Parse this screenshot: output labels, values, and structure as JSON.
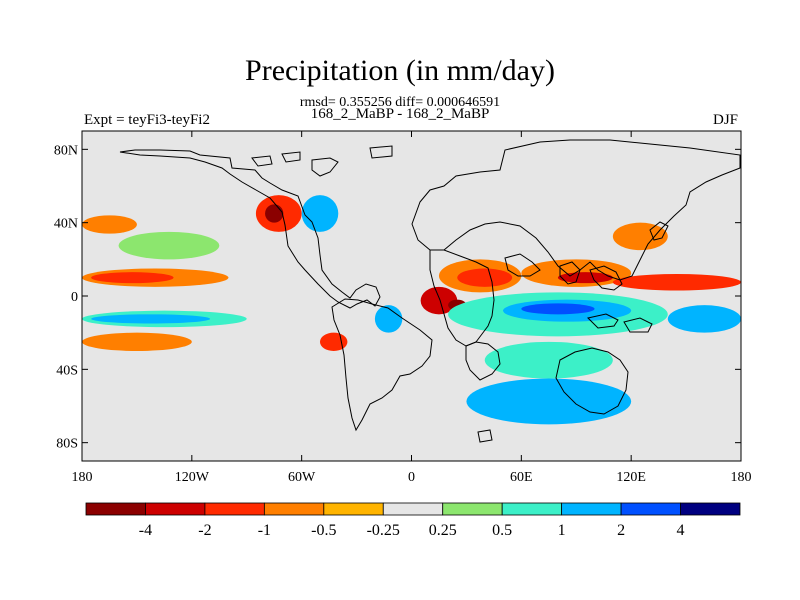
{
  "figure": {
    "title": "Precipitation (in mm/day)",
    "stats": "rmsd= 0.355256 diff= 0.000646591",
    "subtitle": "168_2_MaBP - 168_2_MaBP",
    "left_label": "Expt = teyFi3-teyFi2",
    "right_label": "DJF"
  },
  "chart_data": {
    "type": "heatmap",
    "title": "Precipitation (in mm/day)",
    "x_axis": {
      "range": [
        -180,
        180
      ],
      "ticks": [
        -180,
        -120,
        -60,
        0,
        60,
        120,
        180
      ],
      "labels": [
        "180",
        "120W",
        "60W",
        "0",
        "60E",
        "120E",
        "180"
      ]
    },
    "y_axis": {
      "range": [
        -90,
        90
      ],
      "ticks": [
        80,
        40,
        0,
        -40,
        -80
      ],
      "labels": [
        "80N",
        "40N",
        "0",
        "40S",
        "80S"
      ]
    },
    "colorbar": {
      "levels": [
        "-4",
        "-2",
        "-1",
        "-0.5",
        "-0.25",
        "0.25",
        "0.5",
        "1",
        "2",
        "4"
      ],
      "colors": [
        "#8b0000",
        "#cd0000",
        "#ff2a00",
        "#ff7f00",
        "#ffb400",
        "#e6e6e6",
        "#8ce66e",
        "#3cf0c8",
        "#00b4ff",
        "#0050ff",
        "#000080"
      ]
    },
    "anomaly_regions": [
      {
        "lon": [
          -180,
          -100
        ],
        "lat": [
          5,
          15
        ],
        "category": "-0.5"
      },
      {
        "lon": [
          -175,
          -130
        ],
        "lat": [
          7,
          13
        ],
        "category": "-1"
      },
      {
        "lon": [
          -180,
          -120
        ],
        "lat": [
          -30,
          -20
        ],
        "category": "-0.5"
      },
      {
        "lon": [
          -180,
          -90
        ],
        "lat": [
          -17,
          -8
        ],
        "category": "0.5"
      },
      {
        "lon": [
          -175,
          -110
        ],
        "lat": [
          -15,
          -10
        ],
        "category": "1"
      },
      {
        "lon": [
          -160,
          -105
        ],
        "lat": [
          20,
          35
        ],
        "category": "0.25"
      },
      {
        "lon": [
          -180,
          -150
        ],
        "lat": [
          34,
          44
        ],
        "category": "-0.5"
      },
      {
        "lon": [
          -85,
          -60
        ],
        "lat": [
          35,
          55
        ],
        "category": "-1"
      },
      {
        "lon": [
          -80,
          -70
        ],
        "lat": [
          40,
          50
        ],
        "category": "-4"
      },
      {
        "lon": [
          -60,
          -40
        ],
        "lat": [
          35,
          55
        ],
        "category": "1"
      },
      {
        "lon": [
          -50,
          -35
        ],
        "lat": [
          -30,
          -20
        ],
        "category": "-1"
      },
      {
        "lon": [
          -20,
          -5
        ],
        "lat": [
          -20,
          -5
        ],
        "category": "1"
      },
      {
        "lon": [
          5,
          25
        ],
        "lat": [
          -10,
          5
        ],
        "category": "-2"
      },
      {
        "lon": [
          20,
          30
        ],
        "lat": [
          -8,
          -2
        ],
        "category": "-4"
      },
      {
        "lon": [
          15,
          60
        ],
        "lat": [
          2,
          20
        ],
        "category": "-0.5"
      },
      {
        "lon": [
          25,
          55
        ],
        "lat": [
          5,
          15
        ],
        "category": "-1"
      },
      {
        "lon": [
          20,
          140
        ],
        "lat": [
          -22,
          2
        ],
        "category": "0.5"
      },
      {
        "lon": [
          50,
          120
        ],
        "lat": [
          -14,
          -2
        ],
        "category": "1"
      },
      {
        "lon": [
          60,
          100
        ],
        "lat": [
          -10,
          -4
        ],
        "category": "2"
      },
      {
        "lon": [
          60,
          120
        ],
        "lat": [
          5,
          20
        ],
        "category": "-0.5"
      },
      {
        "lon": [
          80,
          110
        ],
        "lat": [
          7,
          13
        ],
        "category": "-2"
      },
      {
        "lon": [
          110,
          180
        ],
        "lat": [
          3,
          12
        ],
        "category": "-1"
      },
      {
        "lon": [
          110,
          140
        ],
        "lat": [
          25,
          40
        ],
        "category": "-0.5"
      },
      {
        "lon": [
          140,
          180
        ],
        "lat": [
          -20,
          -5
        ],
        "category": "1"
      },
      {
        "lon": [
          40,
          110
        ],
        "lat": [
          -45,
          -25
        ],
        "category": "0.5"
      },
      {
        "lon": [
          30,
          120
        ],
        "lat": [
          -70,
          -45
        ],
        "category": "1"
      }
    ]
  }
}
